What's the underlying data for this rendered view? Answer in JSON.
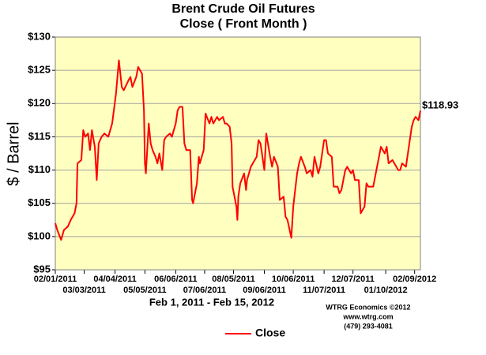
{
  "chart_data": {
    "type": "line",
    "title": [
      "Brent Crude Oil Futures",
      "Close ( Front Month )"
    ],
    "y_label": "$ / Barrel",
    "x_label": "Feb 1, 2011 - Feb 15, 2012",
    "credit": [
      "WTRG Economics  ©2012",
      "www.wtrg.com",
      "(479) 293-4081"
    ],
    "xlim": [
      "2011-02-01",
      "2012-02-15"
    ],
    "xticks": [
      {
        "value": "2011-02-01",
        "label": "02/01/2011"
      },
      {
        "value": "2011-03-03",
        "label": "03/03/2011"
      },
      {
        "value": "2011-04-04",
        "label": "04/04/2011"
      },
      {
        "value": "2011-05-05",
        "label": "05/05/2011"
      },
      {
        "value": "2011-06-06",
        "label": "06/06/2011"
      },
      {
        "value": "2011-07-06",
        "label": "07/06/2011"
      },
      {
        "value": "2011-08-05",
        "label": "08/05/2011"
      },
      {
        "value": "2011-09-06",
        "label": "09/06/2011"
      },
      {
        "value": "2011-10-06",
        "label": "10/06/2011"
      },
      {
        "value": "2011-11-07",
        "label": "11/07/2011"
      },
      {
        "value": "2011-12-07",
        "label": "12/07/2011"
      },
      {
        "value": "2012-01-10",
        "label": "01/10/2012"
      },
      {
        "value": "2012-02-09",
        "label": "02/09/2012"
      }
    ],
    "ylim": [
      95,
      130
    ],
    "yticks": [
      {
        "value": 95,
        "label": "$95"
      },
      {
        "value": 100,
        "label": "$100"
      },
      {
        "value": 105,
        "label": "$105"
      },
      {
        "value": 110,
        "label": "$110"
      },
      {
        "value": 115,
        "label": "$115"
      },
      {
        "value": 120,
        "label": "$120"
      },
      {
        "value": 125,
        "label": "$125"
      },
      {
        "value": 130,
        "label": "$130"
      }
    ],
    "grid": true,
    "legend": "bottom",
    "x": [
      "2011-02-01",
      "2011-02-03",
      "2011-02-07",
      "2011-02-10",
      "2011-02-14",
      "2011-02-17",
      "2011-02-21",
      "2011-02-23",
      "2011-02-24",
      "2011-02-28",
      "2011-03-02",
      "2011-03-04",
      "2011-03-07",
      "2011-03-09",
      "2011-03-11",
      "2011-03-14",
      "2011-03-16",
      "2011-03-18",
      "2011-03-21",
      "2011-03-24",
      "2011-03-28",
      "2011-04-01",
      "2011-04-05",
      "2011-04-08",
      "2011-04-11",
      "2011-04-13",
      "2011-04-18",
      "2011-04-20",
      "2011-04-22",
      "2011-04-26",
      "2011-04-28",
      "2011-05-02",
      "2011-05-04",
      "2011-05-05",
      "2011-05-06",
      "2011-05-09",
      "2011-05-11",
      "2011-05-13",
      "2011-05-16",
      "2011-05-18",
      "2011-05-20",
      "2011-05-23",
      "2011-05-25",
      "2011-05-27",
      "2011-05-31",
      "2011-06-02",
      "2011-06-06",
      "2011-06-08",
      "2011-06-10",
      "2011-06-13",
      "2011-06-15",
      "2011-06-17",
      "2011-06-21",
      "2011-06-23",
      "2011-06-24",
      "2011-06-28",
      "2011-06-30",
      "2011-07-01",
      "2011-07-05",
      "2011-07-07",
      "2011-07-11",
      "2011-07-13",
      "2011-07-15",
      "2011-07-19",
      "2011-07-21",
      "2011-07-25",
      "2011-07-27",
      "2011-07-29",
      "2011-08-01",
      "2011-08-03",
      "2011-08-04",
      "2011-08-08",
      "2011-08-09",
      "2011-08-10",
      "2011-08-12",
      "2011-08-16",
      "2011-08-18",
      "2011-08-19",
      "2011-08-23",
      "2011-08-25",
      "2011-08-29",
      "2011-08-31",
      "2011-09-02",
      "2011-09-06",
      "2011-09-08",
      "2011-09-12",
      "2011-09-14",
      "2011-09-16",
      "2011-09-20",
      "2011-09-22",
      "2011-09-26",
      "2011-09-28",
      "2011-09-30",
      "2011-10-04",
      "2011-10-06",
      "2011-10-10",
      "2011-10-12",
      "2011-10-14",
      "2011-10-18",
      "2011-10-20",
      "2011-10-24",
      "2011-10-26",
      "2011-10-28",
      "2011-11-01",
      "2011-11-03",
      "2011-11-07",
      "2011-11-09",
      "2011-11-11",
      "2011-11-15",
      "2011-11-17",
      "2011-11-21",
      "2011-11-23",
      "2011-11-25",
      "2011-11-29",
      "2011-12-01",
      "2011-12-05",
      "2011-12-07",
      "2011-12-09",
      "2011-12-13",
      "2011-12-15",
      "2011-12-19",
      "2011-12-21",
      "2011-12-23",
      "2011-12-28",
      "2012-01-03",
      "2012-01-05",
      "2012-01-09",
      "2012-01-11",
      "2012-01-13",
      "2012-01-17",
      "2012-01-19",
      "2012-01-23",
      "2012-01-25",
      "2012-01-27",
      "2012-01-31",
      "2012-02-02",
      "2012-02-06",
      "2012-02-08",
      "2012-02-10",
      "2012-02-13",
      "2012-02-15"
    ],
    "series": [
      {
        "name": "Close",
        "color": "#ff0000",
        "values": [
          102,
          101,
          99.5,
          101,
          101.5,
          102.5,
          103.5,
          105,
          111,
          111.5,
          116,
          115,
          115.5,
          113,
          116,
          113.5,
          108.5,
          114,
          115,
          115.5,
          115,
          117,
          121.5,
          126.5,
          122.5,
          122,
          123.5,
          124,
          122.5,
          124,
          125.5,
          124.5,
          119,
          111,
          109.5,
          117,
          114,
          113,
          112,
          111,
          112.5,
          110,
          114.5,
          115,
          115.5,
          115,
          117,
          119,
          119.5,
          119.5,
          114,
          113,
          113,
          105.5,
          105,
          108,
          112,
          111,
          113,
          118.5,
          117,
          118,
          117,
          118,
          117.5,
          118,
          117,
          117,
          116.5,
          114,
          107.5,
          104.5,
          102.5,
          106,
          108,
          109.5,
          107,
          108.5,
          110.5,
          111,
          112,
          114.5,
          114,
          110,
          115.5,
          112,
          110.5,
          112,
          110.5,
          105.5,
          106,
          103,
          102.5,
          99.8,
          104.5,
          109.5,
          111,
          112,
          110.5,
          109.5,
          110,
          109,
          112,
          109.5,
          110.5,
          114.5,
          114.5,
          112.5,
          112,
          107.5,
          107.5,
          106.5,
          107,
          110,
          110.5,
          109.5,
          110,
          108.5,
          108.5,
          103.5,
          104.5,
          108,
          107.5,
          107.5,
          112,
          113.5,
          112.5,
          113.5,
          111,
          111.5,
          111,
          110,
          110,
          111,
          110.5,
          112.5,
          116.5,
          117.5,
          118,
          117.5,
          118.93
        ]
      }
    ],
    "annotations": [
      {
        "text": "$118.93",
        "x": "2012-02-15",
        "y": 118.93
      }
    ]
  }
}
